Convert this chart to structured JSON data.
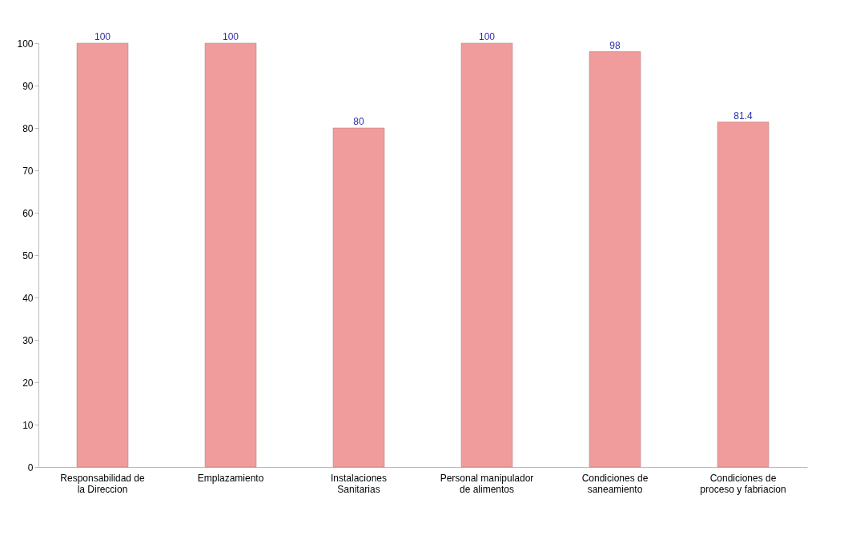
{
  "chart_data": {
    "type": "bar",
    "categories": [
      "Responsabilidad de la Direccion",
      "Emplazamiento",
      "Instalaciones Sanitarias",
      "Personal manipulador de alimentos",
      "Condiciones de saneamiento",
      "Condiciones de proceso y fabriacion"
    ],
    "values": [
      100,
      100,
      80,
      100,
      98,
      81.4
    ],
    "color": "#f09c9c",
    "ylim": [
      0,
      100
    ],
    "yticks": [
      0,
      10,
      20,
      30,
      40,
      50,
      60,
      70,
      80,
      90,
      100
    ],
    "data_labels": true
  }
}
